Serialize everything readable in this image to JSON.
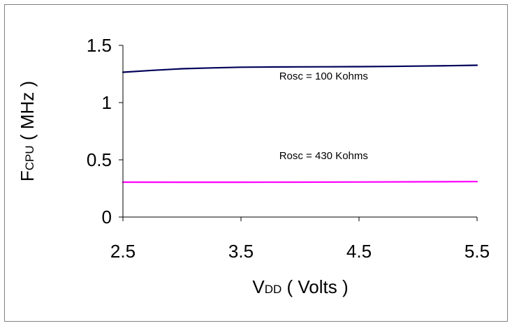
{
  "chart_data": {
    "type": "line",
    "title": "",
    "xlabel": {
      "main": "V",
      "sub": "DD",
      "rest": " ( Volts )"
    },
    "ylabel": {
      "main": "F",
      "sub": "CPU",
      "rest": " ( MHz )"
    },
    "xlim": [
      2.5,
      5.5
    ],
    "ylim": [
      0,
      1.5
    ],
    "x_ticks": [
      "2.5",
      "3.5",
      "4.5",
      "5.5"
    ],
    "y_ticks": [
      "0",
      "0.5",
      "1",
      "1.5"
    ],
    "grid": false,
    "series": [
      {
        "name": "Rosc = 100 Kohms",
        "color": "#00005a",
        "x": [
          2.5,
          2.75,
          3.0,
          3.25,
          3.5,
          3.75,
          4.0,
          4.25,
          4.5,
          4.75,
          5.0,
          5.25,
          5.5
        ],
        "y": [
          1.265,
          1.282,
          1.296,
          1.303,
          1.309,
          1.311,
          1.312,
          1.313,
          1.314,
          1.316,
          1.319,
          1.322,
          1.326
        ]
      },
      {
        "name": "Rosc = 430 Kohms",
        "color": "#ff00ff",
        "x": [
          2.5,
          3.0,
          3.5,
          4.0,
          4.5,
          5.0,
          5.5
        ],
        "y": [
          0.305,
          0.304,
          0.304,
          0.305,
          0.306,
          0.308,
          0.31
        ]
      }
    ]
  }
}
